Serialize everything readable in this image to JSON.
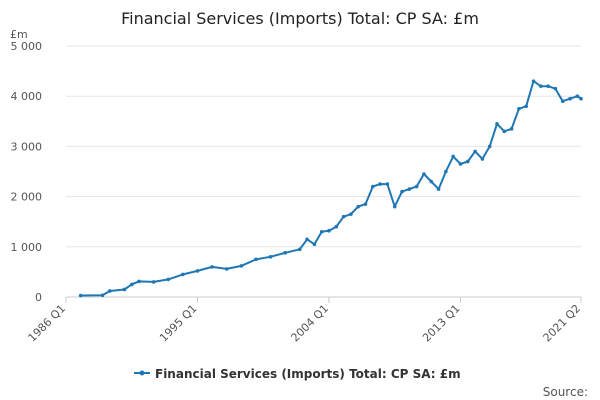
{
  "chart_data": {
    "type": "line",
    "title": "Financial Services (Imports) Total: CP SA: £m",
    "y_unit_label": "£m",
    "series_name": "Financial Services (Imports) Total: CP SA: £m",
    "source_label": "Source:",
    "ylim": [
      0,
      5000
    ],
    "y_ticks": [
      {
        "value": 0,
        "label": "0"
      },
      {
        "value": 1000,
        "label": "1 000"
      },
      {
        "value": 2000,
        "label": "2 000"
      },
      {
        "value": 3000,
        "label": "3 000"
      },
      {
        "value": 4000,
        "label": "4 000"
      },
      {
        "value": 5000,
        "label": "5 000"
      }
    ],
    "x_ticks": [
      {
        "value": 1986.0,
        "label": "1986 Q1"
      },
      {
        "value": 1995.0,
        "label": "1995 Q1"
      },
      {
        "value": 2004.0,
        "label": "2004 Q1"
      },
      {
        "value": 2013.0,
        "label": "2013 Q1"
      },
      {
        "value": 2021.25,
        "label": "2021 Q2"
      }
    ],
    "x_range": [
      1986.0,
      2021.25
    ],
    "grid": true,
    "legend_position": "bottom",
    "color": "#1f77b4",
    "x": [
      1987.0,
      1988.5,
      1989.0,
      1990.0,
      1990.5,
      1991.0,
      1992.0,
      1993.0,
      1994.0,
      1995.0,
      1996.0,
      1997.0,
      1998.0,
      1999.0,
      2000.0,
      2001.0,
      2002.0,
      2002.5,
      2003.0,
      2003.5,
      2004.0,
      2004.5,
      2005.0,
      2005.5,
      2006.0,
      2006.5,
      2007.0,
      2007.5,
      2008.0,
      2008.5,
      2009.0,
      2009.5,
      2010.0,
      2010.5,
      2011.0,
      2011.5,
      2012.0,
      2012.5,
      2013.0,
      2013.5,
      2014.0,
      2014.5,
      2015.0,
      2015.5,
      2016.0,
      2016.5,
      2017.0,
      2017.5,
      2018.0,
      2018.5,
      2019.0,
      2019.5,
      2020.0,
      2020.5,
      2021.0,
      2021.25
    ],
    "y": [
      30,
      35,
      120,
      150,
      250,
      310,
      300,
      350,
      450,
      520,
      600,
      560,
      620,
      750,
      800,
      880,
      950,
      1150,
      1050,
      1300,
      1320,
      1400,
      1600,
      1650,
      1800,
      1850,
      2200,
      2250,
      2250,
      1800,
      2100,
      2150,
      2200,
      2450,
      2300,
      2150,
      2500,
      2800,
      2650,
      2700,
      2900,
      2750,
      3000,
      3450,
      3300,
      3350,
      3750,
      3800,
      4300,
      4200,
      4200,
      4150,
      3900,
      3950,
      4000,
      3950
    ]
  }
}
